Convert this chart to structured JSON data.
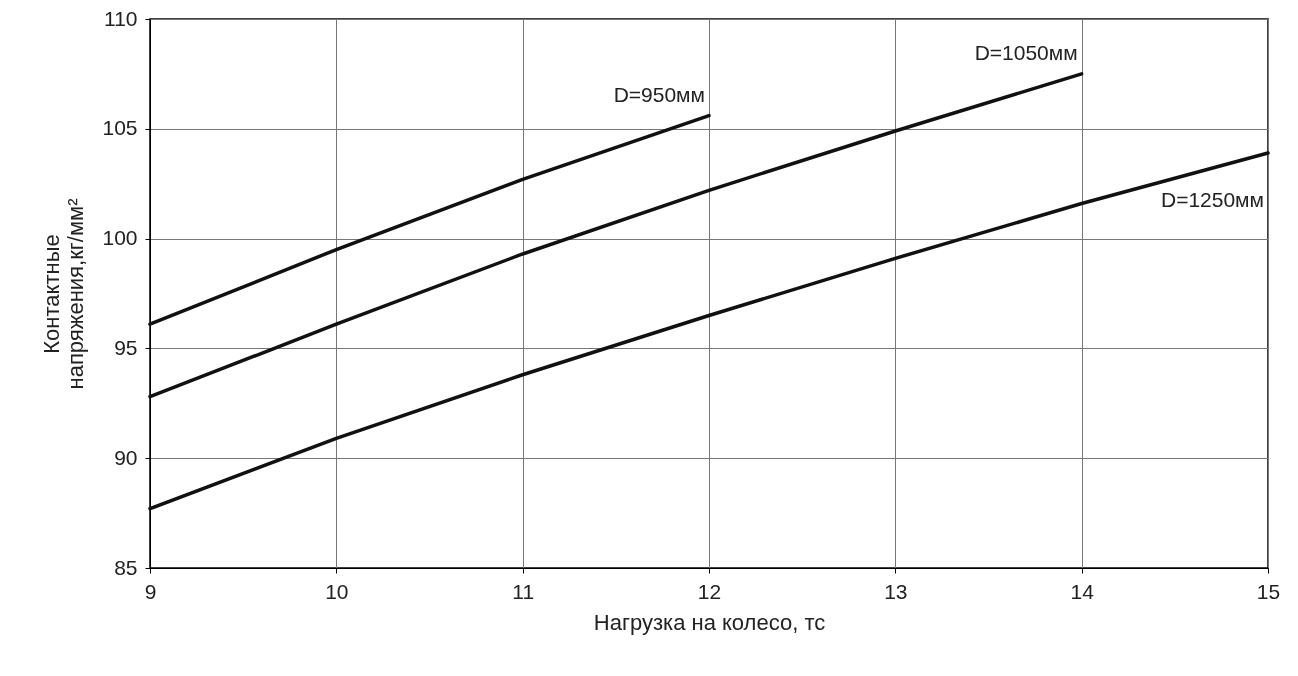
{
  "chart_data": {
    "type": "line",
    "xlabel": "Нагрузка на колесо, тс",
    "ylabel": [
      "Контактные",
      "напряжения,кг/мм²"
    ],
    "xlim": [
      9,
      15
    ],
    "xticks": [
      9,
      10,
      11,
      12,
      13,
      14,
      15
    ],
    "ylim": [
      85,
      110
    ],
    "yticks": [
      85,
      90,
      95,
      100,
      105,
      110
    ],
    "grid": true,
    "marker": "none",
    "line_style": "solid",
    "series": [
      {
        "name": "D=950мм",
        "color": "#111111",
        "x": [
          9,
          10,
          11,
          12
        ],
        "values": [
          96.1,
          99.5,
          102.7,
          105.6
        ]
      },
      {
        "name": "D=1050мм",
        "color": "#111111",
        "x": [
          9,
          10,
          11,
          12,
          13,
          14
        ],
        "values": [
          92.8,
          96.1,
          99.3,
          102.2,
          104.9,
          107.5
        ]
      },
      {
        "name": "D=1250мм",
        "color": "#111111",
        "x": [
          9,
          10,
          11,
          12,
          13,
          14,
          15
        ],
        "values": [
          87.7,
          90.9,
          93.8,
          96.5,
          99.1,
          101.6,
          103.9
        ]
      }
    ]
  }
}
